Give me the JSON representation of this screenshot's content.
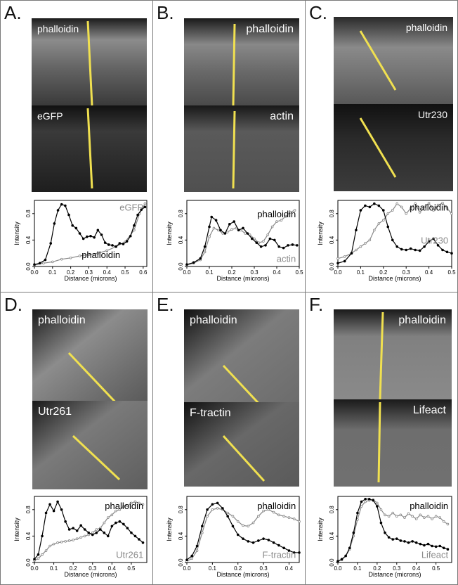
{
  "panels": [
    {
      "letter": "A.",
      "image_labels": [
        "phalloidin",
        "eGFP"
      ],
      "chart_data": {
        "type": "line",
        "xlabel": "Distance (microns)",
        "ylabel": "Intensity",
        "xlim": [
          0,
          0.62
        ],
        "ylim": [
          0,
          1.0
        ],
        "xticks": [
          "0.0",
          "0.1",
          "0.2",
          "0.3",
          "0.4",
          "0.5",
          "0.6"
        ],
        "yticks": [
          "0.0",
          "0.4",
          "0.8"
        ],
        "series": [
          {
            "name": "phalloidin",
            "color": "#000000",
            "x": [
              0.0,
              0.03,
              0.06,
              0.09,
              0.11,
              0.13,
              0.15,
              0.17,
              0.19,
              0.21,
              0.23,
              0.25,
              0.27,
              0.29,
              0.31,
              0.33,
              0.35,
              0.37,
              0.39,
              0.41,
              0.43,
              0.45,
              0.47,
              0.49,
              0.51,
              0.53,
              0.55,
              0.57,
              0.59,
              0.61
            ],
            "y": [
              0.03,
              0.05,
              0.1,
              0.35,
              0.65,
              0.85,
              0.94,
              0.92,
              0.78,
              0.62,
              0.58,
              0.5,
              0.42,
              0.45,
              0.46,
              0.44,
              0.55,
              0.48,
              0.36,
              0.33,
              0.32,
              0.3,
              0.35,
              0.34,
              0.38,
              0.46,
              0.62,
              0.78,
              0.86,
              0.9
            ]
          },
          {
            "name": "eGFP",
            "color": "#888888",
            "x": [
              0.0,
              0.05,
              0.1,
              0.15,
              0.2,
              0.25,
              0.3,
              0.35,
              0.4,
              0.45,
              0.5,
              0.55,
              0.58,
              0.61
            ],
            "y": [
              0.02,
              0.05,
              0.07,
              0.11,
              0.13,
              0.16,
              0.18,
              0.2,
              0.24,
              0.3,
              0.37,
              0.55,
              0.8,
              0.95
            ]
          }
        ]
      }
    },
    {
      "letter": "B.",
      "image_labels": [
        "phalloidin",
        "actin"
      ],
      "chart_data": {
        "type": "line",
        "xlabel": "Distance (microns)",
        "ylabel": "Intensity",
        "xlim": [
          0,
          0.5
        ],
        "ylim": [
          0,
          1.0
        ],
        "xticks": [
          "0.0",
          "0.1",
          "0.2",
          "0.3",
          "0.4",
          "0.5"
        ],
        "yticks": [
          "0.0",
          "0.4",
          "0.8"
        ],
        "series": [
          {
            "name": "phalloidin",
            "color": "#000000",
            "x": [
              0.0,
              0.03,
              0.06,
              0.08,
              0.1,
              0.11,
              0.13,
              0.15,
              0.17,
              0.19,
              0.21,
              0.23,
              0.25,
              0.27,
              0.29,
              0.31,
              0.33,
              0.35,
              0.37,
              0.39,
              0.41,
              0.43,
              0.45,
              0.47,
              0.49
            ],
            "y": [
              0.03,
              0.06,
              0.12,
              0.3,
              0.6,
              0.75,
              0.7,
              0.55,
              0.5,
              0.64,
              0.68,
              0.55,
              0.58,
              0.5,
              0.42,
              0.36,
              0.3,
              0.32,
              0.42,
              0.4,
              0.3,
              0.28,
              0.32,
              0.33,
              0.32
            ]
          },
          {
            "name": "actin",
            "color": "#888888",
            "x": [
              0.0,
              0.03,
              0.06,
              0.08,
              0.1,
              0.12,
              0.14,
              0.16,
              0.18,
              0.2,
              0.22,
              0.24,
              0.26,
              0.28,
              0.3,
              0.32,
              0.34,
              0.36,
              0.38,
              0.4,
              0.42,
              0.44,
              0.46,
              0.48
            ],
            "y": [
              0.02,
              0.05,
              0.1,
              0.22,
              0.45,
              0.58,
              0.55,
              0.5,
              0.52,
              0.56,
              0.58,
              0.55,
              0.5,
              0.48,
              0.42,
              0.36,
              0.38,
              0.48,
              0.6,
              0.68,
              0.7,
              0.76,
              0.82,
              0.85
            ]
          }
        ]
      }
    },
    {
      "letter": "C.",
      "image_labels": [
        "phalloidin",
        "Utr230"
      ],
      "chart_data": {
        "type": "line",
        "xlabel": "Distance (microns)",
        "ylabel": "Intensity",
        "xlim": [
          0,
          0.5
        ],
        "ylim": [
          0,
          1.0
        ],
        "xticks": [
          "0.0",
          "0.1",
          "0.2",
          "0.3",
          "0.4",
          "0.5"
        ],
        "yticks": [
          "0.0",
          "0.4",
          "0.8"
        ],
        "series": [
          {
            "name": "phalloidin",
            "color": "#000000",
            "x": [
              0.0,
              0.03,
              0.06,
              0.08,
              0.1,
              0.12,
              0.14,
              0.16,
              0.18,
              0.2,
              0.22,
              0.24,
              0.26,
              0.28,
              0.3,
              0.32,
              0.34,
              0.36,
              0.38,
              0.4,
              0.42,
              0.44,
              0.46,
              0.48,
              0.5
            ],
            "y": [
              0.05,
              0.08,
              0.2,
              0.55,
              0.85,
              0.92,
              0.9,
              0.95,
              0.92,
              0.85,
              0.6,
              0.4,
              0.3,
              0.26,
              0.25,
              0.27,
              0.25,
              0.24,
              0.3,
              0.38,
              0.42,
              0.32,
              0.25,
              0.22,
              0.2
            ]
          },
          {
            "name": "Utr230",
            "color": "#888888",
            "x": [
              0.0,
              0.03,
              0.06,
              0.08,
              0.1,
              0.12,
              0.14,
              0.16,
              0.18,
              0.2,
              0.22,
              0.24,
              0.26,
              0.28,
              0.3,
              0.32,
              0.34,
              0.36,
              0.38,
              0.4,
              0.42,
              0.44,
              0.46,
              0.48,
              0.5
            ],
            "y": [
              0.12,
              0.15,
              0.2,
              0.25,
              0.3,
              0.35,
              0.4,
              0.55,
              0.65,
              0.7,
              0.8,
              0.85,
              0.95,
              0.9,
              0.8,
              0.88,
              0.95,
              0.82,
              0.9,
              0.96,
              0.85,
              0.93,
              0.96,
              0.88,
              0.8
            ]
          }
        ]
      }
    },
    {
      "letter": "D.",
      "image_labels": [
        "phalloidin",
        "Utr261"
      ],
      "chart_data": {
        "type": "line",
        "xlabel": "Distance (microns)",
        "ylabel": "Intensity",
        "xlim": [
          0,
          0.58
        ],
        "ylim": [
          0,
          1.0
        ],
        "xticks": [
          "0.0",
          "0.1",
          "0.2",
          "0.3",
          "0.4",
          "0.5"
        ],
        "yticks": [
          "0.0",
          "0.4",
          "0.8"
        ],
        "series": [
          {
            "name": "phalloidin",
            "color": "#000000",
            "x": [
              0.0,
              0.02,
              0.04,
              0.06,
              0.08,
              0.1,
              0.12,
              0.14,
              0.16,
              0.18,
              0.2,
              0.22,
              0.24,
              0.26,
              0.28,
              0.3,
              0.32,
              0.34,
              0.36,
              0.38,
              0.4,
              0.42,
              0.44,
              0.46,
              0.48,
              0.5,
              0.52,
              0.54,
              0.56
            ],
            "y": [
              0.05,
              0.12,
              0.4,
              0.75,
              0.88,
              0.78,
              0.92,
              0.8,
              0.62,
              0.5,
              0.52,
              0.48,
              0.56,
              0.5,
              0.45,
              0.42,
              0.45,
              0.5,
              0.45,
              0.4,
              0.55,
              0.6,
              0.62,
              0.58,
              0.52,
              0.45,
              0.4,
              0.35,
              0.3
            ]
          },
          {
            "name": "Utr261",
            "color": "#888888",
            "x": [
              0.0,
              0.02,
              0.04,
              0.06,
              0.08,
              0.1,
              0.12,
              0.14,
              0.16,
              0.18,
              0.2,
              0.22,
              0.24,
              0.26,
              0.28,
              0.3,
              0.32,
              0.34,
              0.36,
              0.38,
              0.4,
              0.42,
              0.44,
              0.46,
              0.48,
              0.5,
              0.52,
              0.54,
              0.56
            ],
            "y": [
              0.03,
              0.06,
              0.12,
              0.18,
              0.25,
              0.28,
              0.3,
              0.31,
              0.32,
              0.33,
              0.34,
              0.36,
              0.38,
              0.4,
              0.42,
              0.45,
              0.5,
              0.52,
              0.6,
              0.68,
              0.72,
              0.78,
              0.8,
              0.85,
              0.86,
              0.9,
              0.92,
              0.9,
              0.88
            ]
          }
        ]
      }
    },
    {
      "letter": "E.",
      "image_labels": [
        "phalloidin",
        "F-tractin"
      ],
      "chart_data": {
        "type": "line",
        "xlabel": "Distance (microns)",
        "ylabel": "Intensity",
        "xlim": [
          0,
          0.44
        ],
        "ylim": [
          0,
          1.0
        ],
        "xticks": [
          "0.0",
          "0.1",
          "0.2",
          "0.3",
          "0.4"
        ],
        "yticks": [
          "0.0",
          "0.4",
          "0.8"
        ],
        "series": [
          {
            "name": "phalloidin",
            "color": "#000000",
            "x": [
              0.0,
              0.02,
              0.04,
              0.06,
              0.08,
              0.1,
              0.12,
              0.14,
              0.16,
              0.18,
              0.2,
              0.22,
              0.24,
              0.26,
              0.28,
              0.3,
              0.32,
              0.34,
              0.36,
              0.38,
              0.4,
              0.42,
              0.44
            ],
            "y": [
              0.04,
              0.1,
              0.25,
              0.55,
              0.8,
              0.88,
              0.9,
              0.82,
              0.7,
              0.55,
              0.42,
              0.36,
              0.32,
              0.3,
              0.33,
              0.36,
              0.34,
              0.3,
              0.26,
              0.22,
              0.18,
              0.15,
              0.15
            ]
          },
          {
            "name": "F-tractin",
            "color": "#888888",
            "x": [
              0.0,
              0.02,
              0.04,
              0.06,
              0.08,
              0.1,
              0.12,
              0.14,
              0.16,
              0.18,
              0.2,
              0.22,
              0.24,
              0.26,
              0.28,
              0.3,
              0.32,
              0.34,
              0.36,
              0.38,
              0.4,
              0.42,
              0.44
            ],
            "y": [
              0.02,
              0.06,
              0.18,
              0.45,
              0.7,
              0.8,
              0.82,
              0.8,
              0.75,
              0.7,
              0.62,
              0.56,
              0.55,
              0.6,
              0.7,
              0.78,
              0.8,
              0.76,
              0.72,
              0.7,
              0.68,
              0.66,
              0.62
            ]
          }
        ]
      }
    },
    {
      "letter": "F.",
      "image_labels": [
        "phalloidin",
        "Lifeact"
      ],
      "chart_data": {
        "type": "line",
        "xlabel": "Distance (microns)",
        "ylabel": "Intensity",
        "xlim": [
          0,
          0.58
        ],
        "ylim": [
          0,
          1.0
        ],
        "xticks": [
          "0.0",
          "0.1",
          "0.2",
          "0.3",
          "0.4",
          "0.5"
        ],
        "yticks": [
          "0.0",
          "0.4",
          "0.8"
        ],
        "series": [
          {
            "name": "phalloidin",
            "color": "#000000",
            "x": [
              0.0,
              0.02,
              0.04,
              0.06,
              0.08,
              0.1,
              0.12,
              0.14,
              0.16,
              0.18,
              0.2,
              0.22,
              0.24,
              0.26,
              0.28,
              0.3,
              0.32,
              0.34,
              0.36,
              0.38,
              0.4,
              0.42,
              0.44,
              0.46,
              0.48,
              0.5,
              0.52,
              0.54,
              0.56
            ],
            "y": [
              0.02,
              0.05,
              0.1,
              0.22,
              0.45,
              0.75,
              0.92,
              0.96,
              0.96,
              0.94,
              0.85,
              0.6,
              0.45,
              0.38,
              0.35,
              0.36,
              0.33,
              0.32,
              0.3,
              0.32,
              0.3,
              0.28,
              0.26,
              0.28,
              0.25,
              0.24,
              0.25,
              0.22,
              0.2
            ]
          },
          {
            "name": "Lifeact",
            "color": "#888888",
            "x": [
              0.0,
              0.02,
              0.04,
              0.06,
              0.08,
              0.1,
              0.12,
              0.14,
              0.16,
              0.18,
              0.2,
              0.22,
              0.24,
              0.26,
              0.28,
              0.3,
              0.32,
              0.34,
              0.36,
              0.38,
              0.4,
              0.42,
              0.44,
              0.46,
              0.48,
              0.5,
              0.52,
              0.54,
              0.56
            ],
            "y": [
              0.02,
              0.04,
              0.1,
              0.2,
              0.4,
              0.65,
              0.85,
              0.92,
              0.94,
              0.95,
              0.9,
              0.8,
              0.72,
              0.7,
              0.75,
              0.7,
              0.72,
              0.68,
              0.74,
              0.7,
              0.66,
              0.72,
              0.68,
              0.7,
              0.66,
              0.7,
              0.68,
              0.62,
              0.58
            ]
          }
        ]
      }
    }
  ]
}
